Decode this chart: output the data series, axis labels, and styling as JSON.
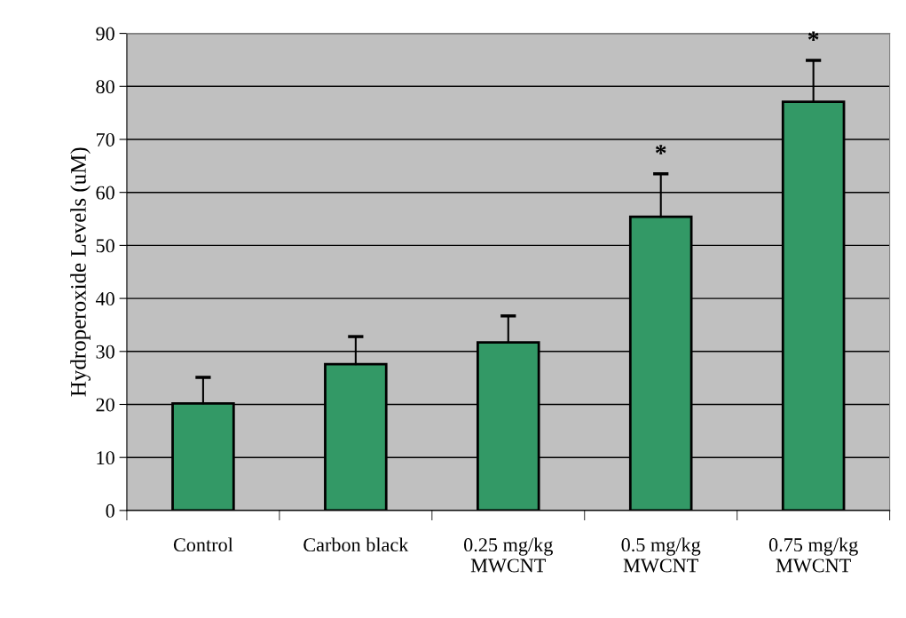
{
  "chart_data": {
    "type": "bar",
    "ylabel": "Hydroperoxide Levels (uM)",
    "categories": [
      "Control",
      "Carbon black",
      "0.25 mg/kg\nMWCNT",
      "0.5 mg/kg\nMWCNT",
      "0.75 mg/kg\nMWCNT"
    ],
    "values": [
      20.2,
      27.6,
      31.7,
      55.4,
      77.1
    ],
    "errors": [
      [
        20.2,
        25.1
      ],
      [
        27.6,
        32.8
      ],
      [
        31.7,
        36.7
      ],
      [
        55.4,
        63.5
      ],
      [
        77.1,
        84.9
      ]
    ],
    "color": "#339966",
    "ylim": [
      0,
      90
    ],
    "yticks": [
      0,
      10,
      20,
      30,
      40,
      50,
      60,
      70,
      80,
      90
    ],
    "grid": "y",
    "annotations": [
      {
        "text": "*",
        "x": "0.5 mg/kg\nMWCNT",
        "y": 63.5
      },
      {
        "text": "*",
        "x": "0.75 mg/kg\nMWCNT",
        "y": 84.9
      }
    ]
  }
}
